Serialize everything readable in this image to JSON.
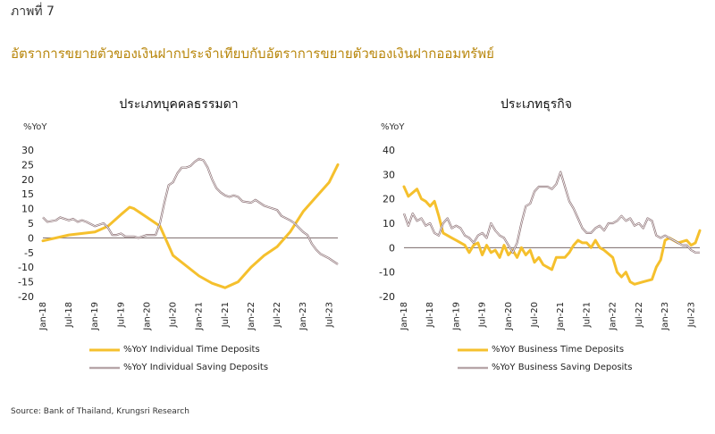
{
  "header": {
    "figure_number": "ภาพที่ 7",
    "title": "อัตราการขยายตัวของเงินฝากประจำเทียบกับอัตราการขยายตัวของเงินฝากออมทรัพย์"
  },
  "colors": {
    "time_deposits": "#f5c02d",
    "saving_deposits": "#8b6f73",
    "zero_line": "#7a6a6a"
  },
  "chart_data": [
    {
      "type": "line",
      "title": "ประเภทบุคคลธรรมดา",
      "ylabel": "%YoY",
      "ylim": [
        -20,
        30
      ],
      "yticks": [
        30,
        25,
        20,
        15,
        10,
        5,
        0,
        -5,
        -10,
        -15,
        -20
      ],
      "x_range": [
        "Jan-18",
        "Sep-23"
      ],
      "x_tick_labels": [
        "Jan-18",
        "Jul-18",
        "Jan-19",
        "Jul-19",
        "Jan-20",
        "Jul-20",
        "Jan-21",
        "Jul-21",
        "Jan-22",
        "Jul-22",
        "Jan-23",
        "Jul-23"
      ],
      "series": [
        {
          "name": "%YoY Individual Time Deposits",
          "color": "#f5c02d",
          "points": [
            [
              "Jan-18",
              -1
            ],
            [
              "Jul-18",
              1
            ],
            [
              "Jan-19",
              2
            ],
            [
              "Apr-19",
              4
            ],
            [
              "Jul-19",
              8
            ],
            [
              "Sep-19",
              10.5
            ],
            [
              "Oct-19",
              10
            ],
            [
              "Jan-20",
              7
            ],
            [
              "Apr-20",
              4
            ],
            [
              "Jul-20",
              -6
            ],
            [
              "Jan-21",
              -13
            ],
            [
              "Apr-21",
              -15.5
            ],
            [
              "Jul-21",
              -17
            ],
            [
              "Oct-21",
              -15
            ],
            [
              "Jan-22",
              -10
            ],
            [
              "Apr-22",
              -6
            ],
            [
              "Jul-22",
              -3
            ],
            [
              "Oct-22",
              2
            ],
            [
              "Jan-23",
              9
            ],
            [
              "Apr-23",
              14
            ],
            [
              "Jul-23",
              19
            ],
            [
              "Sep-23",
              25
            ]
          ]
        },
        {
          "name": "%YoY Individual Saving Deposits",
          "color": "#8b6f73",
          "points": [
            [
              "Jan-18",
              7
            ],
            [
              "Feb-18",
              5.5
            ],
            [
              "Apr-18",
              6
            ],
            [
              "May-18",
              7
            ],
            [
              "Jul-18",
              6
            ],
            [
              "Aug-18",
              6.5
            ],
            [
              "Sep-18",
              5.5
            ],
            [
              "Oct-18",
              6
            ],
            [
              "Nov-18",
              5.5
            ],
            [
              "Jan-19",
              4
            ],
            [
              "Mar-19",
              5
            ],
            [
              "Apr-19",
              3.5
            ],
            [
              "May-19",
              1
            ],
            [
              "Jun-19",
              1
            ],
            [
              "Jul-19",
              1.5
            ],
            [
              "Aug-19",
              0.5
            ],
            [
              "Oct-19",
              0.5
            ],
            [
              "Nov-19",
              0
            ],
            [
              "Jan-20",
              1
            ],
            [
              "Mar-20",
              1
            ],
            [
              "Apr-20",
              5
            ],
            [
              "May-20",
              12
            ],
            [
              "Jun-20",
              18
            ],
            [
              "Jul-20",
              19
            ],
            [
              "Aug-20",
              22
            ],
            [
              "Sep-20",
              24
            ],
            [
              "Oct-20",
              24
            ],
            [
              "Nov-20",
              24.5
            ],
            [
              "Dec-20",
              26
            ],
            [
              "Jan-21",
              27
            ],
            [
              "Feb-21",
              26.5
            ],
            [
              "Mar-21",
              24
            ],
            [
              "Apr-21",
              20
            ],
            [
              "May-21",
              17
            ],
            [
              "Jun-21",
              15.5
            ],
            [
              "Jul-21",
              14.5
            ],
            [
              "Aug-21",
              14
            ],
            [
              "Sep-21",
              14.5
            ],
            [
              "Oct-21",
              14
            ],
            [
              "Nov-21",
              12.5
            ],
            [
              "Jan-22",
              12
            ],
            [
              "Feb-22",
              13
            ],
            [
              "Apr-22",
              11
            ],
            [
              "May-22",
              10.5
            ],
            [
              "Jul-22",
              9.5
            ],
            [
              "Aug-22",
              7.5
            ],
            [
              "Oct-22",
              6
            ],
            [
              "Nov-22",
              5
            ],
            [
              "Jan-23",
              2
            ],
            [
              "Feb-23",
              1
            ],
            [
              "Mar-23",
              -2
            ],
            [
              "Apr-23",
              -4
            ],
            [
              "May-23",
              -5.5
            ],
            [
              "Jul-23",
              -7
            ],
            [
              "Sep-23",
              -9
            ]
          ]
        }
      ],
      "legend": [
        "%YoY Individual Time Deposits",
        "%YoY Individual Saving Deposits"
      ],
      "legend_placement": "bottom"
    },
    {
      "type": "line",
      "title": "ประเภทธุรกิจ",
      "ylabel": "%YoY",
      "ylim": [
        -20,
        40
      ],
      "yticks": [
        40,
        30,
        20,
        10,
        0,
        -10,
        -20
      ],
      "x_range": [
        "Jan-18",
        "Sep-23"
      ],
      "x_tick_labels": [
        "Jan-18",
        "Jul-18",
        "Jan-19",
        "Jul-19",
        "Jan-20",
        "Jul-20",
        "Jan-21",
        "Jul-21",
        "Jan-22",
        "Jul-22",
        "Jan-23",
        "Jul-23"
      ],
      "series": [
        {
          "name": "%YoY Business Time Deposits",
          "color": "#f5c02d",
          "points": [
            [
              "Jan-18",
              25
            ],
            [
              "Feb-18",
              21
            ],
            [
              "Apr-18",
              24
            ],
            [
              "May-18",
              20
            ],
            [
              "Jun-18",
              19
            ],
            [
              "Jul-18",
              17
            ],
            [
              "Aug-18",
              19
            ],
            [
              "Sep-18",
              13
            ],
            [
              "Oct-18",
              6
            ],
            [
              "Dec-18",
              4
            ],
            [
              "Jan-19",
              3
            ],
            [
              "Mar-19",
              1
            ],
            [
              "Apr-19",
              -2
            ],
            [
              "May-19",
              1
            ],
            [
              "Jun-19",
              2
            ],
            [
              "Jul-19",
              -3
            ],
            [
              "Aug-19",
              1
            ],
            [
              "Sep-19",
              -2
            ],
            [
              "Oct-19",
              -1
            ],
            [
              "Nov-19",
              -4
            ],
            [
              "Dec-19",
              1
            ],
            [
              "Jan-20",
              -3
            ],
            [
              "Feb-20",
              -1
            ],
            [
              "Mar-20",
              -4
            ],
            [
              "Apr-20",
              0
            ],
            [
              "May-20",
              -3
            ],
            [
              "Jun-20",
              -1
            ],
            [
              "Jul-20",
              -6
            ],
            [
              "Aug-20",
              -4
            ],
            [
              "Sep-20",
              -7
            ],
            [
              "Oct-20",
              -8
            ],
            [
              "Nov-20",
              -9
            ],
            [
              "Dec-20",
              -4
            ],
            [
              "Feb-21",
              -4
            ],
            [
              "Mar-21",
              -2
            ],
            [
              "Apr-21",
              1
            ],
            [
              "May-21",
              3
            ],
            [
              "Jun-21",
              2
            ],
            [
              "Jul-21",
              2
            ],
            [
              "Aug-21",
              0
            ],
            [
              "Sep-21",
              3
            ],
            [
              "Oct-21",
              0
            ],
            [
              "Nov-21",
              -1
            ],
            [
              "Jan-22",
              -4
            ],
            [
              "Feb-22",
              -10
            ],
            [
              "Mar-22",
              -12
            ],
            [
              "Apr-22",
              -10
            ],
            [
              "May-22",
              -14
            ],
            [
              "Jun-22",
              -15
            ],
            [
              "Aug-22",
              -14
            ],
            [
              "Oct-22",
              -13
            ],
            [
              "Nov-22",
              -8
            ],
            [
              "Dec-22",
              -5
            ],
            [
              "Jan-23",
              3
            ],
            [
              "Feb-23",
              4
            ],
            [
              "Apr-23",
              2
            ],
            [
              "Jun-23",
              3
            ],
            [
              "Jul-23",
              1
            ],
            [
              "Aug-23",
              2
            ],
            [
              "Sep-23",
              7
            ]
          ]
        },
        {
          "name": "%YoY Business Saving Deposits",
          "color": "#8b6f73",
          "points": [
            [
              "Jan-18",
              14
            ],
            [
              "Feb-18",
              9
            ],
            [
              "Mar-18",
              14
            ],
            [
              "Apr-18",
              11
            ],
            [
              "May-18",
              12
            ],
            [
              "Jun-18",
              9
            ],
            [
              "Jul-18",
              10
            ],
            [
              "Aug-18",
              6
            ],
            [
              "Sep-18",
              5
            ],
            [
              "Oct-18",
              10
            ],
            [
              "Nov-18",
              12
            ],
            [
              "Dec-18",
              8
            ],
            [
              "Jan-19",
              9
            ],
            [
              "Feb-19",
              8
            ],
            [
              "Mar-19",
              5
            ],
            [
              "Apr-19",
              4
            ],
            [
              "May-19",
              2
            ],
            [
              "Jun-19",
              5
            ],
            [
              "Jul-19",
              6
            ],
            [
              "Aug-19",
              4
            ],
            [
              "Sep-19",
              10
            ],
            [
              "Oct-19",
              7
            ],
            [
              "Nov-19",
              5
            ],
            [
              "Dec-19",
              4
            ],
            [
              "Jan-20",
              1
            ],
            [
              "Feb-20",
              -2
            ],
            [
              "Mar-20",
              2
            ],
            [
              "Apr-20",
              10
            ],
            [
              "May-20",
              17
            ],
            [
              "Jun-20",
              18
            ],
            [
              "Jul-20",
              23
            ],
            [
              "Aug-20",
              25
            ],
            [
              "Sep-20",
              25
            ],
            [
              "Oct-20",
              25
            ],
            [
              "Nov-20",
              24
            ],
            [
              "Dec-20",
              26
            ],
            [
              "Jan-21",
              31
            ],
            [
              "Feb-21",
              25
            ],
            [
              "Mar-21",
              19
            ],
            [
              "Apr-21",
              16
            ],
            [
              "May-21",
              12
            ],
            [
              "Jun-21",
              8
            ],
            [
              "Jul-21",
              6
            ],
            [
              "Aug-21",
              6
            ],
            [
              "Sep-21",
              8
            ],
            [
              "Oct-21",
              9
            ],
            [
              "Nov-21",
              7
            ],
            [
              "Dec-21",
              10
            ],
            [
              "Jan-22",
              10
            ],
            [
              "Feb-22",
              11
            ],
            [
              "Mar-22",
              13
            ],
            [
              "Apr-22",
              11
            ],
            [
              "May-22",
              12
            ],
            [
              "Jun-22",
              9
            ],
            [
              "Jul-22",
              10
            ],
            [
              "Aug-22",
              8
            ],
            [
              "Sep-22",
              12
            ],
            [
              "Oct-22",
              11
            ],
            [
              "Nov-22",
              5
            ],
            [
              "Dec-22",
              4
            ],
            [
              "Jan-23",
              5
            ],
            [
              "Feb-23",
              4
            ],
            [
              "Mar-23",
              3
            ],
            [
              "Apr-23",
              2
            ],
            [
              "May-23",
              1
            ],
            [
              "Jun-23",
              1
            ],
            [
              "Jul-23",
              -1
            ],
            [
              "Aug-23",
              -2
            ],
            [
              "Sep-23",
              -2
            ]
          ]
        }
      ],
      "legend": [
        "%YoY Business Time Deposits",
        "%YoY Business Saving Deposits"
      ],
      "legend_placement": "bottom"
    }
  ],
  "source": "Source: Bank of Thailand, Krungsri Research"
}
